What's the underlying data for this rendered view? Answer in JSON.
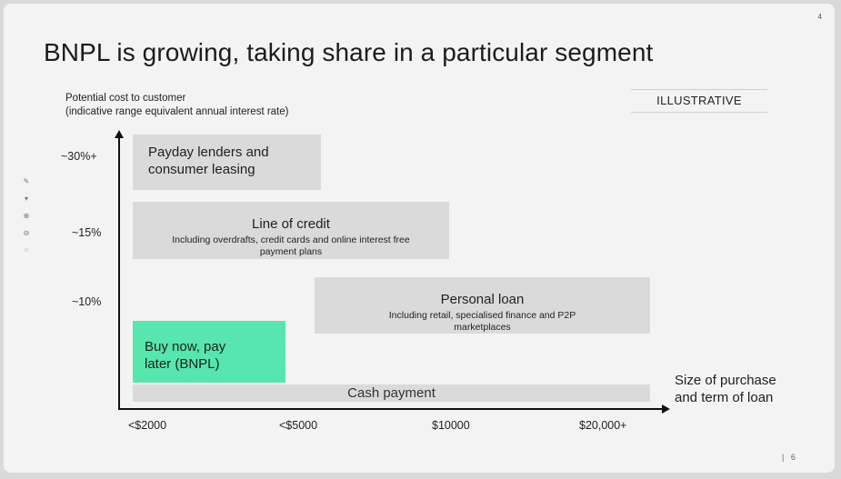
{
  "slide": {
    "title": "BNPL is growing, taking share in a particular segment",
    "corner_mark": "4",
    "tag": "ILLUSTRATIVE",
    "page_number": "6",
    "page_sep": "|"
  },
  "y_axis": {
    "label_line1": "Potential cost to customer",
    "label_line2": "(indicative range equivalent annual interest rate)",
    "ticks": [
      "~30%+",
      "~15%",
      "~10%"
    ]
  },
  "x_axis": {
    "label_line1": "Size of purchase",
    "label_line2": "and term of loan",
    "ticks": [
      "<$2000",
      "<$5000",
      "$10000",
      "$20,000+"
    ]
  },
  "segments": {
    "payday": {
      "title_line1": "Payday lenders and",
      "title_line2": "consumer leasing"
    },
    "line_of_credit": {
      "title": "Line of credit",
      "sub_line1": "Including overdrafts, credit cards and online interest  free",
      "sub_line2": "payment plans"
    },
    "personal_loan": {
      "title": "Personal loan",
      "sub_line1": "Including retail, specialised finance and P2P",
      "sub_line2": "marketplaces"
    },
    "bnpl": {
      "title_line1": "Buy now, pay",
      "title_line2": "later (BNPL)",
      "color": "#57e6ad"
    },
    "cash": {
      "title": "Cash payment"
    }
  },
  "colors": {
    "box_fill": "#dadada",
    "highlight": "#57e6ad",
    "background": "#f3f3f3"
  },
  "side_toolbar": {
    "icons": [
      "pen-icon",
      "highlighter-icon",
      "zoom-in-icon",
      "zoom-out-icon",
      "grid-icon"
    ]
  }
}
